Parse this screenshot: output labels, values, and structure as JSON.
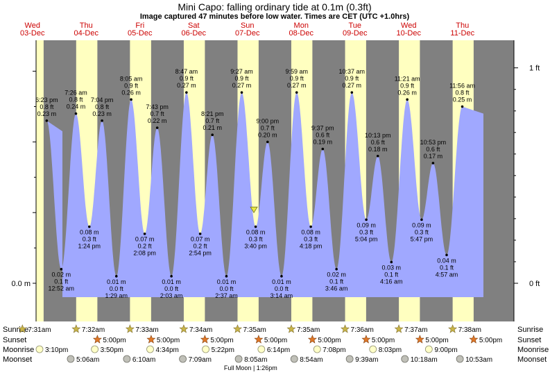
{
  "title": "Mini Capo: falling  ordinary tide at 0.1m (0.3ft)",
  "subtitle": "Image captured 47 minutes before low water. Times are CET (UTC +1.0hrs)",
  "chart_data": {
    "type": "area",
    "title": "Mini Capo: falling  ordinary tide at 0.1m (0.3ft)",
    "subtitle": "Image captured 47 minutes before low water. Times are CET (UTC +1.0hrs)",
    "x_range_days": [
      "03-Dec",
      "11-Dec"
    ],
    "ylim_m": [
      -0.02,
      0.335
    ],
    "left_axis_label": "0.0 m",
    "right_axis_labels": [
      {
        "value_m": 0.0,
        "label": "0 ft"
      },
      {
        "value_m": 0.3048,
        "label": "1 ft"
      }
    ],
    "days": [
      {
        "weekday": "Wed",
        "date": "03-Dec"
      },
      {
        "weekday": "Thu",
        "date": "04-Dec"
      },
      {
        "weekday": "Fri",
        "date": "05-Dec"
      },
      {
        "weekday": "Sat",
        "date": "06-Dec"
      },
      {
        "weekday": "Sun",
        "date": "07-Dec"
      },
      {
        "weekday": "Mon",
        "date": "08-Dec"
      },
      {
        "weekday": "Tue",
        "date": "09-Dec"
      },
      {
        "weekday": "Wed",
        "date": "10-Dec"
      },
      {
        "weekday": "Thu",
        "date": "11-Dec"
      }
    ],
    "tides": [
      {
        "day": 0,
        "time": "6:23 pm",
        "hour": 18.38,
        "m": 0.23,
        "ft": "0.8 ft",
        "mlabel": "0.23 m",
        "type": "high"
      },
      {
        "day": 1,
        "time": "12:52 am",
        "hour": 0.87,
        "m": 0.02,
        "ft": "0.1 ft",
        "mlabel": "0.02 m",
        "type": "low"
      },
      {
        "day": 1,
        "time": "7:26 am",
        "hour": 7.43,
        "m": 0.24,
        "ft": "0.8 ft",
        "mlabel": "0.24 m",
        "type": "high"
      },
      {
        "day": 1,
        "time": "1:24 pm",
        "hour": 13.4,
        "m": 0.08,
        "ft": "0.3 ft",
        "mlabel": "0.08 m",
        "type": "low"
      },
      {
        "day": 1,
        "time": "7:04 pm",
        "hour": 19.07,
        "m": 0.23,
        "ft": "0.8 ft",
        "mlabel": "0.23 m",
        "type": "high"
      },
      {
        "day": 2,
        "time": "1:29 am",
        "hour": 1.48,
        "m": 0.01,
        "ft": "0.0 ft",
        "mlabel": "0.01 m",
        "type": "low"
      },
      {
        "day": 2,
        "time": "8:05 am",
        "hour": 8.08,
        "m": 0.26,
        "ft": "0.9 ft",
        "mlabel": "0.26 m",
        "type": "high"
      },
      {
        "day": 2,
        "time": "2:08 pm",
        "hour": 14.13,
        "m": 0.07,
        "ft": "0.2 ft",
        "mlabel": "0.07 m",
        "type": "low"
      },
      {
        "day": 2,
        "time": "7:43 pm",
        "hour": 19.72,
        "m": 0.22,
        "ft": "0.7 ft",
        "mlabel": "0.22 m",
        "type": "high"
      },
      {
        "day": 3,
        "time": "2:03 am",
        "hour": 2.05,
        "m": 0.01,
        "ft": "0.0 ft",
        "mlabel": "0.01 m",
        "type": "low"
      },
      {
        "day": 3,
        "time": "8:47 am",
        "hour": 8.78,
        "m": 0.27,
        "ft": "0.9 ft",
        "mlabel": "0.27 m",
        "type": "high"
      },
      {
        "day": 3,
        "time": "2:54 pm",
        "hour": 14.9,
        "m": 0.07,
        "ft": "0.2 ft",
        "mlabel": "0.07 m",
        "type": "low"
      },
      {
        "day": 3,
        "time": "8:21 pm",
        "hour": 20.35,
        "m": 0.21,
        "ft": "0.7 ft",
        "mlabel": "0.21 m",
        "type": "high"
      },
      {
        "day": 4,
        "time": "2:37 am",
        "hour": 2.62,
        "m": 0.01,
        "ft": "0.0 ft",
        "mlabel": "0.01 m",
        "type": "low"
      },
      {
        "day": 4,
        "time": "9:27 am",
        "hour": 9.45,
        "m": 0.27,
        "ft": "0.9 ft",
        "mlabel": "0.27 m",
        "type": "high"
      },
      {
        "day": 4,
        "time": "3:40 pm",
        "hour": 15.67,
        "m": 0.08,
        "ft": "0.3 ft",
        "mlabel": "0.08 m",
        "type": "low"
      },
      {
        "day": 4,
        "time": "9:00 pm",
        "hour": 21.0,
        "m": 0.2,
        "ft": "0.7 ft",
        "mlabel": "0.20 m",
        "type": "high"
      },
      {
        "day": 5,
        "time": "3:14 am",
        "hour": 3.23,
        "m": 0.01,
        "ft": "0.0 ft",
        "mlabel": "0.01 m",
        "type": "low"
      },
      {
        "day": 5,
        "time": "9:59 am",
        "hour": 9.98,
        "m": 0.27,
        "ft": "0.9 ft",
        "mlabel": "0.27 m",
        "type": "high"
      },
      {
        "day": 5,
        "time": "4:18 pm",
        "hour": 16.3,
        "m": 0.08,
        "ft": "0.3 ft",
        "mlabel": "0.08 m",
        "type": "low"
      },
      {
        "day": 5,
        "time": "9:37 pm",
        "hour": 21.62,
        "m": 0.19,
        "ft": "0.6 ft",
        "mlabel": "0.19 m",
        "type": "high"
      },
      {
        "day": 6,
        "time": "3:46 am",
        "hour": 3.77,
        "m": 0.02,
        "ft": "0.1 ft",
        "mlabel": "0.02 m",
        "type": "low"
      },
      {
        "day": 6,
        "time": "10:37 am",
        "hour": 10.62,
        "m": 0.27,
        "ft": "0.9 ft",
        "mlabel": "0.27 m",
        "type": "high"
      },
      {
        "day": 6,
        "time": "5:04 pm",
        "hour": 17.07,
        "m": 0.09,
        "ft": "0.3 ft",
        "mlabel": "0.09 m",
        "type": "low"
      },
      {
        "day": 6,
        "time": "10:13 pm",
        "hour": 22.22,
        "m": 0.18,
        "ft": "0.6 ft",
        "mlabel": "0.18 m",
        "type": "high"
      },
      {
        "day": 7,
        "time": "4:16 am",
        "hour": 4.27,
        "m": 0.03,
        "ft": "0.1 ft",
        "mlabel": "0.03 m",
        "type": "low"
      },
      {
        "day": 7,
        "time": "11:21 am",
        "hour": 11.35,
        "m": 0.26,
        "ft": "0.9 ft",
        "mlabel": "0.26 m",
        "type": "high"
      },
      {
        "day": 7,
        "time": "5:47 pm",
        "hour": 17.78,
        "m": 0.09,
        "ft": "0.3 ft",
        "mlabel": "0.09 m",
        "type": "low"
      },
      {
        "day": 7,
        "time": "10:53 pm",
        "hour": 22.88,
        "m": 0.17,
        "ft": "0.6 ft",
        "mlabel": "0.17 m",
        "type": "high"
      },
      {
        "day": 8,
        "time": "4:57 am",
        "hour": 4.95,
        "m": 0.04,
        "ft": "0.1 ft",
        "mlabel": "0.04 m",
        "type": "low"
      },
      {
        "day": 8,
        "time": "11:56 am",
        "hour": 11.93,
        "m": 0.25,
        "ft": "0.8 ft",
        "mlabel": "0.25 m",
        "type": "high"
      }
    ],
    "current": {
      "day": 4,
      "hour": 14.88,
      "m": 0.1
    },
    "daylight": [
      {
        "day": 0,
        "sunrise": 7.52,
        "sunset": 17.0
      },
      {
        "day": 1,
        "sunrise": 7.53,
        "sunset": 17.0
      },
      {
        "day": 2,
        "sunrise": 7.55,
        "sunset": 17.0
      },
      {
        "day": 3,
        "sunrise": 7.57,
        "sunset": 17.0
      },
      {
        "day": 4,
        "sunrise": 7.58,
        "sunset": 17.0
      },
      {
        "day": 5,
        "sunrise": 7.58,
        "sunset": 17.0
      },
      {
        "day": 6,
        "sunrise": 7.6,
        "sunset": 17.0
      },
      {
        "day": 7,
        "sunrise": 7.62,
        "sunset": 17.0
      },
      {
        "day": 8,
        "sunrise": 7.63,
        "sunset": 17.0
      }
    ],
    "colors": {
      "night": "#808080",
      "day": "#ffffc0",
      "water": "#a0a8ff",
      "day_label": "#cc0000",
      "sunrise_star": "#c8b448",
      "sunset_star": "#e07828",
      "moonrise": "#ffffc8",
      "moonset": "#c0c0b8",
      "marker": "#e8e840"
    }
  },
  "events": {
    "labels": {
      "sunrise": "Sunrise",
      "sunset": "Sunset",
      "moonrise": "Moonrise",
      "moonset": "Moonset"
    },
    "sunrise": [
      {
        "day": 0,
        "hour": 7.52,
        "text": "7:31am"
      },
      {
        "day": 1,
        "hour": 7.53,
        "text": "7:32am"
      },
      {
        "day": 2,
        "hour": 7.55,
        "text": "7:33am"
      },
      {
        "day": 3,
        "hour": 7.57,
        "text": "7:34am"
      },
      {
        "day": 4,
        "hour": 7.58,
        "text": "7:35am"
      },
      {
        "day": 5,
        "hour": 7.58,
        "text": "7:35am"
      },
      {
        "day": 6,
        "hour": 7.6,
        "text": "7:36am"
      },
      {
        "day": 7,
        "hour": 7.62,
        "text": "7:37am"
      },
      {
        "day": 8,
        "hour": 7.63,
        "text": "7:38am"
      }
    ],
    "sunset": [
      {
        "day": 1,
        "hour": 17.0,
        "text": "5:00pm"
      },
      {
        "day": 2,
        "hour": 17.0,
        "text": "5:00pm"
      },
      {
        "day": 3,
        "hour": 17.0,
        "text": "5:00pm"
      },
      {
        "day": 4,
        "hour": 17.0,
        "text": "5:00pm"
      },
      {
        "day": 5,
        "hour": 17.0,
        "text": "5:00pm"
      },
      {
        "day": 6,
        "hour": 17.0,
        "text": "5:00pm"
      },
      {
        "day": 7,
        "hour": 17.0,
        "text": "5:00pm"
      },
      {
        "day": 8,
        "hour": 17.0,
        "text": "5:00pm"
      }
    ],
    "moonrise": [
      {
        "day": 0,
        "hour": 15.17,
        "text": "3:10pm"
      },
      {
        "day": 1,
        "hour": 15.83,
        "text": "3:50pm"
      },
      {
        "day": 2,
        "hour": 16.57,
        "text": "4:34pm"
      },
      {
        "day": 3,
        "hour": 17.37,
        "text": "5:22pm"
      },
      {
        "day": 4,
        "hour": 18.23,
        "text": "6:14pm"
      },
      {
        "day": 5,
        "hour": 19.13,
        "text": "7:08pm"
      },
      {
        "day": 6,
        "hour": 20.05,
        "text": "8:03pm"
      },
      {
        "day": 7,
        "hour": 21.0,
        "text": "9:00pm"
      }
    ],
    "moonset": [
      {
        "day": 1,
        "hour": 5.1,
        "text": "5:06am"
      },
      {
        "day": 2,
        "hour": 6.17,
        "text": "6:10am"
      },
      {
        "day": 3,
        "hour": 7.15,
        "text": "7:09am"
      },
      {
        "day": 4,
        "hour": 8.08,
        "text": "8:05am"
      },
      {
        "day": 5,
        "hour": 8.9,
        "text": "8:54am"
      },
      {
        "day": 6,
        "hour": 9.65,
        "text": "9:39am"
      },
      {
        "day": 7,
        "hour": 10.3,
        "text": "10:18am"
      },
      {
        "day": 8,
        "hour": 10.88,
        "text": "10:53am"
      }
    ],
    "moon_phase": {
      "day": 4,
      "hour": 13.43,
      "text": "Full Moon | 1:26pm"
    }
  }
}
